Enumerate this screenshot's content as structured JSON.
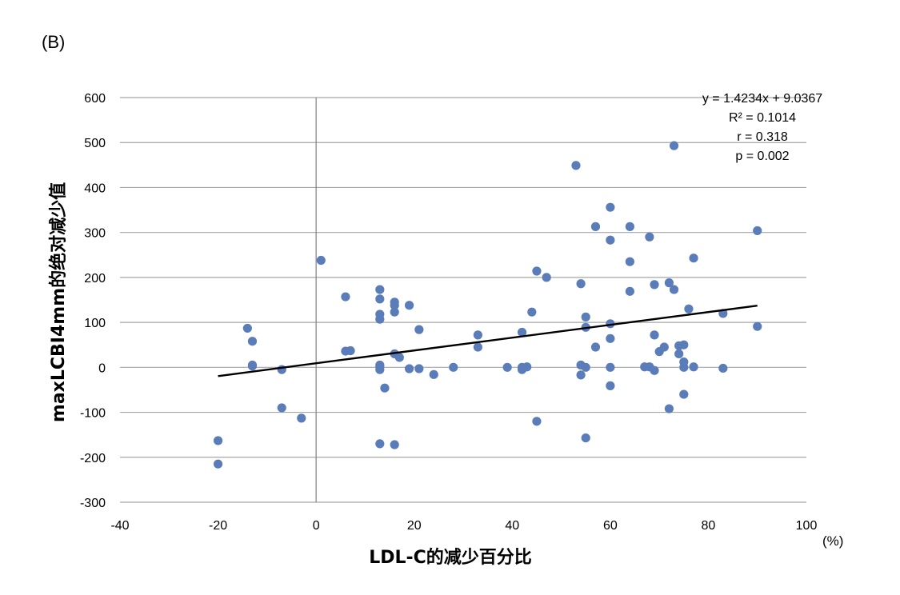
{
  "panel_label": "(B)",
  "colors": {
    "point": "#5A7DBA",
    "grid": "#A6A6A6",
    "axis_zero": "#7F7F7F",
    "trend": "#000000"
  },
  "chart_data": {
    "type": "scatter",
    "xlabel": "LDL-C的减少百分比",
    "x_unit": "(%)",
    "ylabel": "maxLCBI4mm的绝对减少值",
    "xlim": [
      -40,
      100
    ],
    "ylim": [
      -300,
      600
    ],
    "x_ticks": [
      -40,
      -20,
      0,
      20,
      40,
      60,
      80,
      100
    ],
    "y_ticks": [
      -300,
      -200,
      -100,
      0,
      100,
      200,
      300,
      400,
      500,
      600
    ],
    "grid": "horizontal",
    "trendline": {
      "slope": 1.4234,
      "intercept": 9.0367,
      "x_range": [
        -20,
        90
      ]
    },
    "annotations": [
      "y = 1.4234x + 9.0367",
      "R² = 0.1014",
      "r = 0.318",
      "p = 0.002"
    ],
    "points": [
      [
        -20,
        -163
      ],
      [
        -20,
        -215
      ],
      [
        -14,
        87
      ],
      [
        -13,
        58
      ],
      [
        -13,
        5
      ],
      [
        -13,
        3
      ],
      [
        -7,
        -5
      ],
      [
        -7,
        -90
      ],
      [
        -3,
        -113
      ],
      [
        1,
        238
      ],
      [
        6,
        157
      ],
      [
        6,
        36
      ],
      [
        7,
        37
      ],
      [
        13,
        173
      ],
      [
        13,
        152
      ],
      [
        13,
        118
      ],
      [
        13,
        107
      ],
      [
        13,
        2
      ],
      [
        13,
        -5
      ],
      [
        13,
        5
      ],
      [
        14,
        -46
      ],
      [
        13,
        -170
      ],
      [
        16,
        145
      ],
      [
        16,
        138
      ],
      [
        16,
        123
      ],
      [
        16,
        30
      ],
      [
        17,
        22
      ],
      [
        16,
        -172
      ],
      [
        19,
        138
      ],
      [
        19,
        -3
      ],
      [
        21,
        84
      ],
      [
        21,
        -3
      ],
      [
        24,
        -16
      ],
      [
        28,
        0
      ],
      [
        33,
        72
      ],
      [
        33,
        45
      ],
      [
        39,
        0
      ],
      [
        42,
        78
      ],
      [
        42,
        0
      ],
      [
        42,
        -5
      ],
      [
        43,
        1
      ],
      [
        44,
        123
      ],
      [
        45,
        214
      ],
      [
        47,
        200
      ],
      [
        45,
        -120
      ],
      [
        53,
        449
      ],
      [
        54,
        186
      ],
      [
        54,
        5
      ],
      [
        54,
        -17
      ],
      [
        55,
        112
      ],
      [
        55,
        89
      ],
      [
        55,
        0
      ],
      [
        55,
        -157
      ],
      [
        57,
        313
      ],
      [
        57,
        45
      ],
      [
        60,
        356
      ],
      [
        60,
        283
      ],
      [
        60,
        97
      ],
      [
        60,
        64
      ],
      [
        60,
        0
      ],
      [
        60,
        -41
      ],
      [
        64,
        313
      ],
      [
        64,
        235
      ],
      [
        64,
        169
      ],
      [
        67,
        1
      ],
      [
        68,
        290
      ],
      [
        68,
        1
      ],
      [
        69,
        -7
      ],
      [
        69,
        184
      ],
      [
        69,
        72
      ],
      [
        70,
        35
      ],
      [
        71,
        45
      ],
      [
        72,
        188
      ],
      [
        72,
        -92
      ],
      [
        73,
        493
      ],
      [
        73,
        173
      ],
      [
        74,
        48
      ],
      [
        74,
        30
      ],
      [
        75,
        50
      ],
      [
        75,
        12
      ],
      [
        75,
        0
      ],
      [
        75,
        -60
      ],
      [
        76,
        130
      ],
      [
        77,
        243
      ],
      [
        77,
        1
      ],
      [
        83,
        120
      ],
      [
        83,
        -2
      ],
      [
        90,
        304
      ],
      [
        90,
        91
      ]
    ]
  }
}
